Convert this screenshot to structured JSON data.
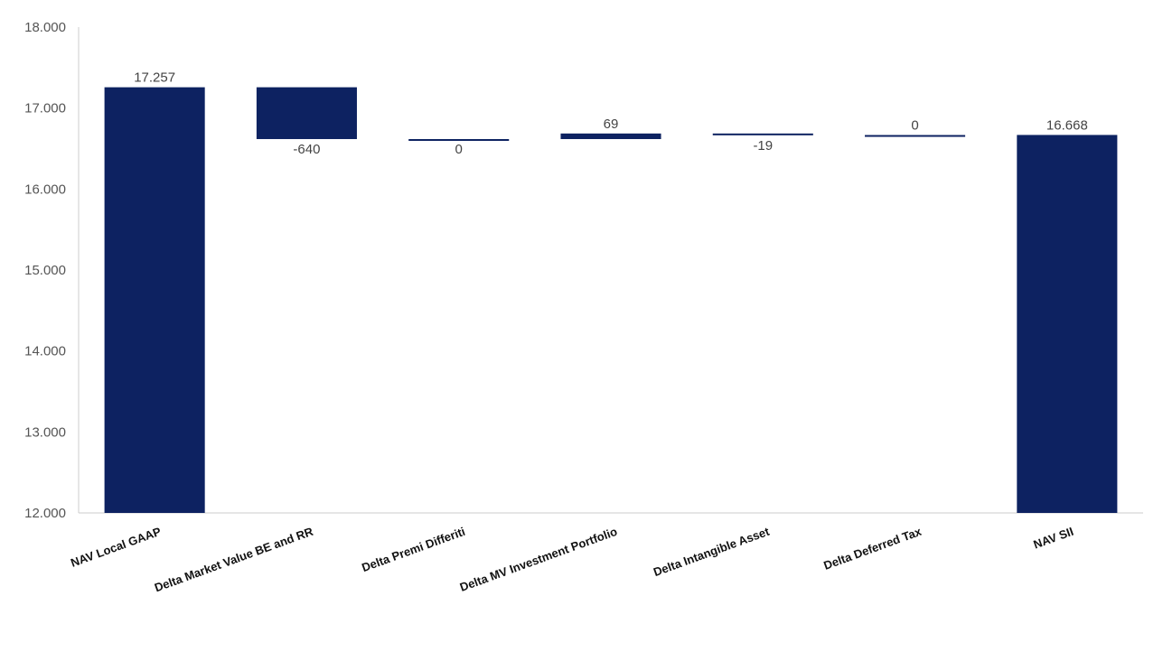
{
  "chart_data": {
    "type": "bar",
    "subtype": "waterfall",
    "title": "",
    "xlabel": "",
    "ylabel": "",
    "ylim": [
      12000,
      18000
    ],
    "y_ticks": [
      "12.000",
      "13.000",
      "14.000",
      "15.000",
      "16.000",
      "17.000",
      "18.000"
    ],
    "grid": false,
    "legend": "none",
    "categories": [
      "NAV Local GAAP",
      "Delta Market Value BE and RR",
      "Delta Premi Differiti",
      "Delta MV Investment Portfolio",
      "Delta Intangible Asset",
      "Delta Deferred Tax",
      "NAV SII"
    ],
    "values": [
      17257,
      -640,
      0,
      69,
      -19,
      0,
      16668
    ],
    "value_labels": [
      "17.257",
      "-640",
      "0",
      "69",
      "-19",
      "0",
      "16.668"
    ],
    "bar_kinds": [
      "total",
      "delta",
      "delta",
      "delta",
      "delta",
      "delta",
      "total"
    ],
    "colors": {
      "bar": "#0d2261",
      "axis": "#cccccc"
    }
  }
}
